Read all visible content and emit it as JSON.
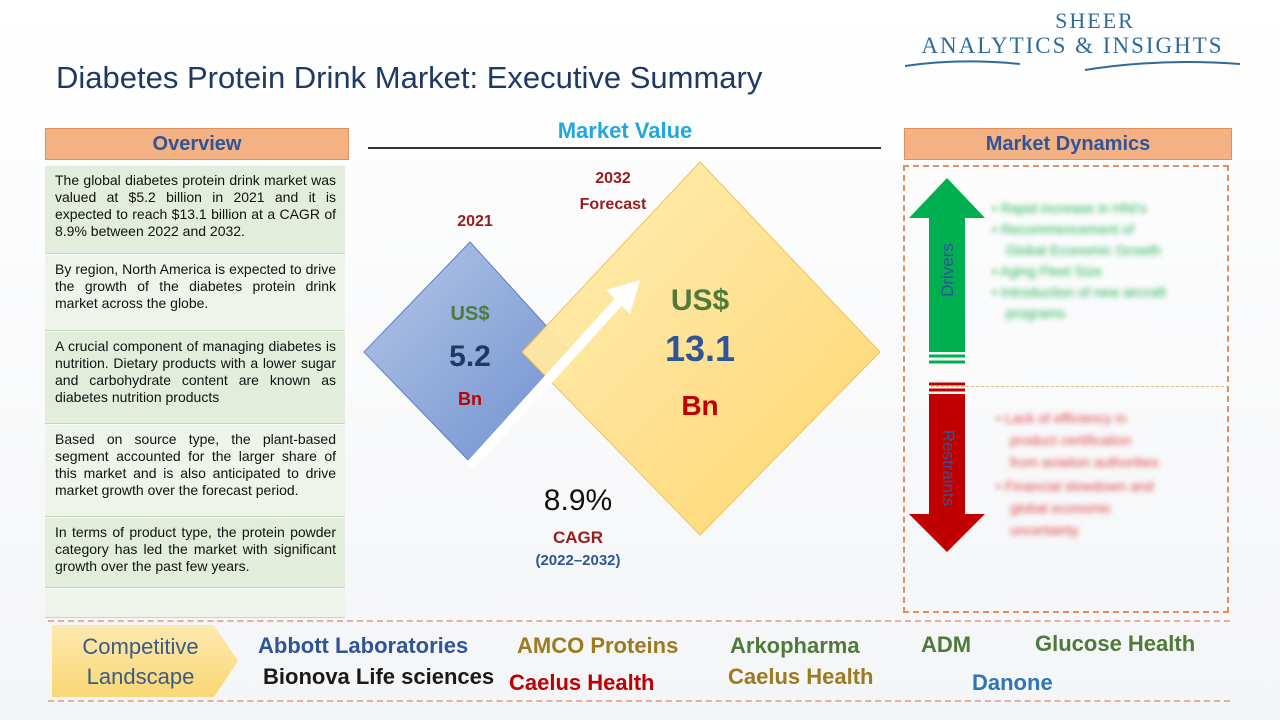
{
  "logo": {
    "line1": "SHEER",
    "line2": "ANALYTICS & INSIGHTS"
  },
  "title": "Diabetes Protein Drink Market: Executive Summary",
  "overview": {
    "header": "Overview",
    "items": [
      "The global diabetes protein drink market was valued at $5.2 billion in 2021 and it is expected to reach $13.1 billion at a CAGR of 8.9% between 2022 and 2032.",
      "By region, North America is expected to drive the growth of the diabetes protein drink market across the globe.",
      "A crucial component of managing diabetes is nutrition. Dietary products with a lower sugar and carbohydrate content are known as diabetes nutrition products",
      "Based on source type, the plant-based segment accounted for the larger share of this market and is also anticipated to drive market growth over the forecast period.",
      "In terms of product type, the protein powder category has led the market with significant growth over the past few years.",
      ""
    ]
  },
  "market_value": {
    "title": "Market Value",
    "year_2021": "2021",
    "forecast_year": "2032",
    "forecast_label": "Forecast",
    "small": {
      "currency": "US$",
      "value": "5.2",
      "unit": "Bn"
    },
    "large": {
      "currency": "US$",
      "value": "13.1",
      "unit": "Bn"
    },
    "cagr_value": "8.9%",
    "cagr_label": "CAGR",
    "cagr_period": "(2022–2032)"
  },
  "dynamics": {
    "header": "Market Dynamics",
    "drivers_label": "Drivers",
    "restraints_label": "Restraints",
    "drivers": [
      "• Rapid increase in HNI's",
      "• Recommencement of",
      "Global Economic Growth",
      "• Aging Fleet Size",
      "• Introduction of new aircraft",
      "programs"
    ],
    "restraints": [
      "• Lack of efficiency in",
      "product certification",
      "from aviation authorities",
      "• Financial slowdown and",
      "global economic",
      "uncertainty"
    ]
  },
  "competitive": {
    "label_line1": "Competitive",
    "label_line2": "Landscape",
    "companies": [
      {
        "name": "Abbott Laboratories",
        "color": "#2f5597"
      },
      {
        "name": "AMCO Proteins",
        "color": "#9c7a1e"
      },
      {
        "name": "Arkopharma",
        "color": "#4f7a3a"
      },
      {
        "name": "ADM",
        "color": "#4f7a3a"
      },
      {
        "name": "Glucose Health",
        "color": "#4f7a3a"
      },
      {
        "name": "Bionova Life sciences",
        "color": "#1a1a1a"
      },
      {
        "name": "Caelus Health",
        "color": "#c00000"
      },
      {
        "name": "Caelus Health",
        "color": "#9c7a1e"
      },
      {
        "name": "Danone",
        "color": "#2e75b6"
      }
    ]
  },
  "colors": {
    "header_fill": "#f4b183",
    "header_text": "#2f5597",
    "overview_fill": "#e2eedb",
    "small_diamond": "#8ea9db",
    "large_diamond": "#ffd966",
    "drivers_green": "#00b050",
    "restraints_red": "#c00000"
  }
}
